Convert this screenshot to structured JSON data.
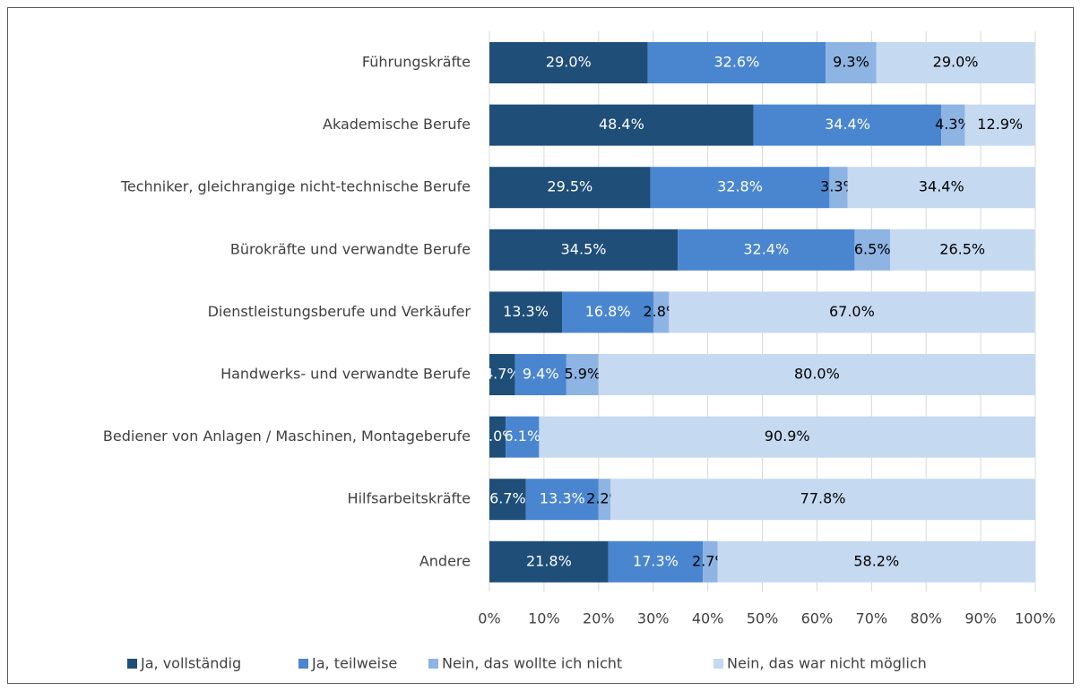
{
  "chart_data": {
    "type": "stacked_barh",
    "categories": [
      "Führungskräfte",
      "Akademische Berufe",
      "Techniker, gleichrangige nicht-technische Berufe",
      "Bürokräfte und verwandte Berufe",
      "Dienstleistungsberufe und Verkäufer",
      "Handwerks- und verwandte Berufe",
      "Bediener von Anlagen /  Maschinen, Montageberufe",
      "Hilfsarbeitskräfte",
      "Andere"
    ],
    "series": [
      {
        "name": "Ja, vollständig",
        "color": "#1f4e79",
        "label_color": "#ffffff",
        "values": [
          29.0,
          48.4,
          29.5,
          34.5,
          13.3,
          4.7,
          3.0,
          6.7,
          21.8
        ],
        "value_labels": [
          "29.0%",
          "48.4%",
          "29.5%",
          "34.5%",
          "13.3%",
          "4.7%",
          "3.0%",
          "6.7%",
          "21.8%"
        ]
      },
      {
        "name": "Ja, teilweise",
        "color": "#4a86d0",
        "label_color": "#ffffff",
        "values": [
          32.6,
          34.4,
          32.8,
          32.4,
          16.8,
          9.4,
          6.1,
          13.3,
          17.3
        ],
        "value_labels": [
          "32.6%",
          "34.4%",
          "32.8%",
          "32.4%",
          "16.8%",
          "9.4%",
          "6.1%",
          "13.3%",
          "17.3%"
        ]
      },
      {
        "name": "Nein, das wollte ich nicht",
        "color": "#8eb4e3",
        "label_color": "#000000",
        "values": [
          9.3,
          4.3,
          3.3,
          6.5,
          2.8,
          5.9,
          null,
          2.2,
          2.7
        ],
        "value_labels": [
          "9.3%",
          "4.3%",
          "3.3%",
          "6.5%",
          "2.8%",
          "5.9%",
          null,
          "2.2%",
          "2.7%"
        ]
      },
      {
        "name": "Nein, das war nicht möglich",
        "color": "#c5d9f1",
        "label_color": "#000000",
        "values": [
          29.0,
          12.9,
          34.4,
          26.5,
          67.0,
          80.0,
          90.9,
          77.8,
          58.2
        ],
        "value_labels": [
          "29.0%",
          "12.9%",
          "34.4%",
          "26.5%",
          "67.0%",
          "80.0%",
          "90.9%",
          "77.8%",
          "58.2%"
        ]
      }
    ],
    "xlim": [
      0,
      100
    ],
    "xticks": [
      {
        "value": 0,
        "label": "0%"
      },
      {
        "value": 10,
        "label": "10%"
      },
      {
        "value": 20,
        "label": "20%"
      },
      {
        "value": 30,
        "label": "30%"
      },
      {
        "value": 40,
        "label": "40%"
      },
      {
        "value": 50,
        "label": "50%"
      },
      {
        "value": 60,
        "label": "60%"
      },
      {
        "value": 70,
        "label": "70%"
      },
      {
        "value": 80,
        "label": "80%"
      },
      {
        "value": 90,
        "label": "90%"
      },
      {
        "value": 100,
        "label": "100%"
      }
    ],
    "grid": true,
    "legend": "bottom"
  }
}
